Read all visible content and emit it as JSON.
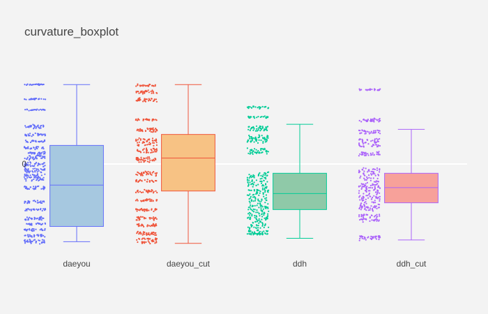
{
  "chart_data": {
    "type": "box",
    "title": "curvature_boxplot",
    "xlabel": "",
    "ylabel": "",
    "ylim": [
      -1.0,
      1.0
    ],
    "y_ticks": [
      {
        "value": 0,
        "label": "0"
      }
    ],
    "grid": false,
    "zeroline": true,
    "legend": "none",
    "points": "all (jittered, left of box)",
    "series": [
      {
        "category": "daeyou",
        "color": "#636efa",
        "box_fill": "#a6c8e0",
        "q1": -0.74,
        "median": -0.25,
        "q3": 0.22,
        "lower_fence": -0.92,
        "upper_fence": 0.94,
        "point_bands": [
          [
            0.94,
            0.94
          ],
          [
            0.77,
            0.77
          ],
          [
            0.64,
            0.64
          ],
          [
            0.42,
            0.46
          ],
          [
            0.33,
            0.36
          ],
          [
            0.26,
            0.28
          ],
          [
            0.18,
            0.2
          ],
          [
            0.12,
            0.14
          ],
          [
            0.05,
            0.1
          ],
          [
            -0.03,
            0.02
          ],
          [
            -0.1,
            -0.05
          ],
          [
            -0.2,
            -0.12
          ],
          [
            -0.3,
            -0.26
          ],
          [
            -0.46,
            -0.44
          ],
          [
            -0.55,
            -0.53
          ],
          [
            -0.66,
            -0.63
          ],
          [
            -0.72,
            -0.7
          ],
          [
            -0.79,
            -0.77
          ],
          [
            -0.86,
            -0.84
          ],
          [
            -0.94,
            -0.9
          ]
        ]
      },
      {
        "category": "daeyou_cut",
        "color": "#ef553b",
        "box_fill": "#f7c284",
        "q1": -0.32,
        "median": 0.07,
        "q3": 0.35,
        "lower_fence": -0.94,
        "upper_fence": 0.94,
        "point_bands": [
          [
            0.92,
            0.94
          ],
          [
            0.83,
            0.87
          ],
          [
            0.74,
            0.78
          ],
          [
            0.52,
            0.53
          ],
          [
            0.38,
            0.43
          ],
          [
            0.22,
            0.3
          ],
          [
            0.13,
            0.18
          ],
          [
            0.02,
            0.08
          ],
          [
            -0.14,
            -0.09
          ],
          [
            -0.21,
            -0.19
          ],
          [
            -0.34,
            -0.31
          ],
          [
            -0.44,
            -0.42
          ],
          [
            -0.56,
            -0.53
          ],
          [
            -0.66,
            -0.63
          ],
          [
            -0.74,
            -0.71
          ],
          [
            -0.84,
            -0.8
          ],
          [
            -0.94,
            -0.88
          ]
        ]
      },
      {
        "category": "ddh",
        "color": "#00cc96",
        "box_fill": "#8fc9a8",
        "q1": -0.54,
        "median": -0.35,
        "q3": -0.11,
        "lower_fence": -0.88,
        "upper_fence": 0.47,
        "point_bands": [
          [
            0.66,
            0.68
          ],
          [
            0.55,
            0.56
          ],
          [
            0.39,
            0.45
          ],
          [
            0.25,
            0.34
          ],
          [
            0.12,
            0.18
          ],
          [
            -0.82,
            -0.1
          ],
          [
            -0.83,
            -0.83
          ]
        ]
      },
      {
        "category": "ddh_cut",
        "color": "#ab63fa",
        "box_fill": "#f7a19a",
        "q1": -0.46,
        "median": -0.28,
        "q3": -0.11,
        "lower_fence": -0.9,
        "upper_fence": 0.41,
        "point_bands": [
          [
            0.88,
            0.88
          ],
          [
            0.5,
            0.54
          ],
          [
            0.36,
            0.4
          ],
          [
            0.2,
            0.3
          ],
          [
            0.1,
            0.14
          ],
          [
            -0.55,
            -0.05
          ],
          [
            -0.68,
            -0.6
          ],
          [
            -0.85,
            -0.9
          ]
        ]
      }
    ]
  }
}
